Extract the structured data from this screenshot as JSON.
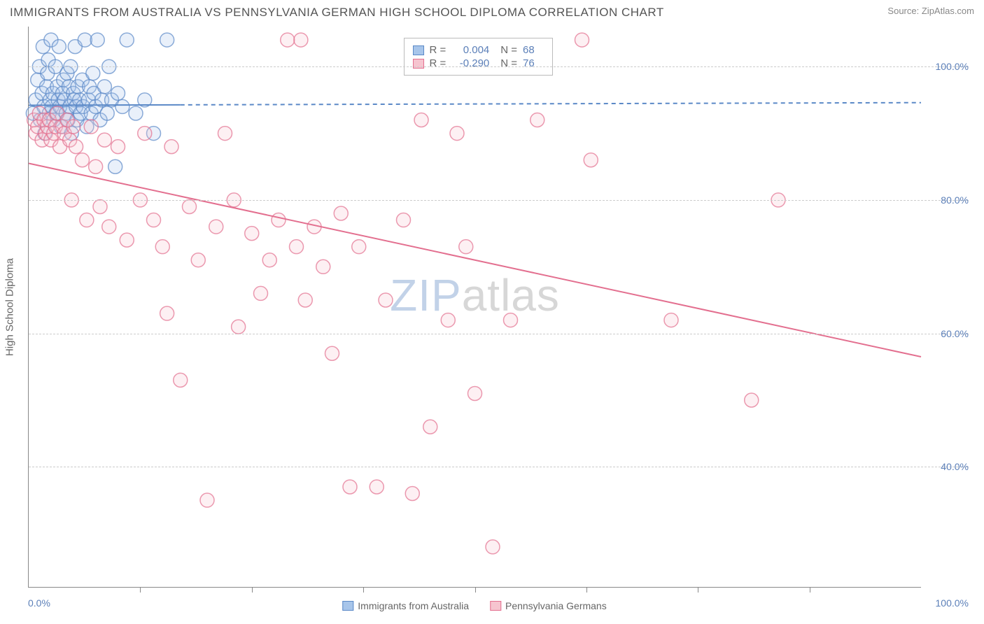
{
  "header": {
    "title": "IMMIGRANTS FROM AUSTRALIA VS PENNSYLVANIA GERMAN HIGH SCHOOL DIPLOMA CORRELATION CHART",
    "source_label": "Source:",
    "source_name": "ZipAtlas.com"
  },
  "chart": {
    "type": "scatter",
    "y_axis_title": "High School Diploma",
    "background_color": "#ffffff",
    "grid_color": "#cccccc",
    "axis_color": "#888888",
    "tick_label_color": "#5b7fb8",
    "xlim": [
      0,
      100
    ],
    "ylim": [
      22,
      106
    ],
    "x_tick_positions": [
      12.5,
      25,
      37.5,
      50,
      62.5,
      75,
      87.5
    ],
    "x_min_label": "0.0%",
    "x_max_label": "100.0%",
    "y_gridlines": [
      40,
      60,
      80,
      100
    ],
    "y_tick_labels": [
      "40.0%",
      "60.0%",
      "80.0%",
      "100.0%"
    ],
    "marker_radius": 10,
    "marker_stroke_width": 1.5,
    "marker_fill_opacity": 0.25,
    "line_width": 2,
    "watermark": {
      "part1": "ZIP",
      "part2": "atlas"
    }
  },
  "stats_box": {
    "left_pct": 42,
    "top_pct": 2,
    "rows": [
      {
        "swatch_fill": "#a7c5ea",
        "swatch_stroke": "#5b89c7",
        "r_label": "R =",
        "r_value": "0.004",
        "n_label": "N =",
        "n_value": "68"
      },
      {
        "swatch_fill": "#f6c4cf",
        "swatch_stroke": "#e36f8f",
        "r_label": "R =",
        "r_value": "-0.290",
        "n_label": "N =",
        "n_value": "76"
      }
    ]
  },
  "bottom_legend": {
    "items": [
      {
        "swatch_fill": "#a7c5ea",
        "swatch_stroke": "#5b89c7",
        "label": "Immigrants from Australia"
      },
      {
        "swatch_fill": "#f6c4cf",
        "swatch_stroke": "#e36f8f",
        "label": "Pennsylvania Germans"
      }
    ]
  },
  "series": [
    {
      "name": "Immigrants from Australia",
      "color_stroke": "#5b89c7",
      "color_fill": "#a7c5ea",
      "trend": {
        "x1": 0,
        "y1": 94.2,
        "x2": 100,
        "y2": 94.6,
        "solid_until_x": 17,
        "dash": "6,5"
      },
      "points": [
        [
          0.5,
          93
        ],
        [
          0.8,
          95
        ],
        [
          1.0,
          98
        ],
        [
          1.2,
          100
        ],
        [
          1.3,
          92
        ],
        [
          1.5,
          96
        ],
        [
          1.6,
          103
        ],
        [
          1.7,
          94
        ],
        [
          1.8,
          90
        ],
        [
          2.0,
          97
        ],
        [
          2.1,
          99
        ],
        [
          2.2,
          101
        ],
        [
          2.3,
          93
        ],
        [
          2.4,
          95
        ],
        [
          2.5,
          104
        ],
        [
          2.6,
          94
        ],
        [
          2.7,
          96
        ],
        [
          2.8,
          92
        ],
        [
          3.0,
          100
        ],
        [
          3.1,
          93
        ],
        [
          3.2,
          97
        ],
        [
          3.3,
          95
        ],
        [
          3.4,
          103
        ],
        [
          3.5,
          94
        ],
        [
          3.6,
          91
        ],
        [
          3.8,
          96
        ],
        [
          3.9,
          98
        ],
        [
          4.0,
          95
        ],
        [
          4.2,
          93
        ],
        [
          4.3,
          99
        ],
        [
          4.4,
          92
        ],
        [
          4.5,
          97
        ],
        [
          4.6,
          94
        ],
        [
          4.7,
          100
        ],
        [
          4.8,
          90
        ],
        [
          5.0,
          96
        ],
        [
          5.1,
          95
        ],
        [
          5.2,
          103
        ],
        [
          5.3,
          94
        ],
        [
          5.4,
          92
        ],
        [
          5.5,
          97
        ],
        [
          5.7,
          95
        ],
        [
          5.8,
          93
        ],
        [
          6.0,
          98
        ],
        [
          6.1,
          94
        ],
        [
          6.3,
          104
        ],
        [
          6.5,
          91
        ],
        [
          6.7,
          95
        ],
        [
          6.8,
          97
        ],
        [
          7.0,
          93
        ],
        [
          7.2,
          99
        ],
        [
          7.3,
          96
        ],
        [
          7.5,
          94
        ],
        [
          7.7,
          104
        ],
        [
          8.0,
          92
        ],
        [
          8.2,
          95
        ],
        [
          8.5,
          97
        ],
        [
          8.8,
          93
        ],
        [
          9.0,
          100
        ],
        [
          9.3,
          95
        ],
        [
          9.7,
          85
        ],
        [
          10.0,
          96
        ],
        [
          10.5,
          94
        ],
        [
          11.0,
          104
        ],
        [
          12.0,
          93
        ],
        [
          13.0,
          95
        ],
        [
          14.0,
          90
        ],
        [
          15.5,
          104
        ]
      ]
    },
    {
      "name": "Pennsylvania Germans",
      "color_stroke": "#e36f8f",
      "color_fill": "#f6c4cf",
      "trend": {
        "x1": 0,
        "y1": 85.5,
        "x2": 100,
        "y2": 56.5,
        "solid_until_x": 100,
        "dash": null
      },
      "points": [
        [
          0.6,
          92
        ],
        [
          0.8,
          90
        ],
        [
          1.0,
          91
        ],
        [
          1.2,
          93
        ],
        [
          1.5,
          89
        ],
        [
          1.7,
          92
        ],
        [
          1.9,
          90
        ],
        [
          2.1,
          91
        ],
        [
          2.3,
          92
        ],
        [
          2.5,
          89
        ],
        [
          2.8,
          90
        ],
        [
          3.0,
          91
        ],
        [
          3.2,
          93
        ],
        [
          3.5,
          88
        ],
        [
          3.8,
          91
        ],
        [
          4.0,
          90
        ],
        [
          4.3,
          92
        ],
        [
          4.6,
          89
        ],
        [
          4.8,
          80
        ],
        [
          5.0,
          91
        ],
        [
          5.3,
          88
        ],
        [
          6.0,
          86
        ],
        [
          6.5,
          77
        ],
        [
          7.0,
          91
        ],
        [
          7.5,
          85
        ],
        [
          8.0,
          79
        ],
        [
          8.5,
          89
        ],
        [
          9.0,
          76
        ],
        [
          10.0,
          88
        ],
        [
          11.0,
          74
        ],
        [
          12.5,
          80
        ],
        [
          13.0,
          90
        ],
        [
          14.0,
          77
        ],
        [
          15.0,
          73
        ],
        [
          15.5,
          63
        ],
        [
          16.0,
          88
        ],
        [
          17.0,
          53
        ],
        [
          18.0,
          79
        ],
        [
          19.0,
          71
        ],
        [
          20.0,
          35
        ],
        [
          21.0,
          76
        ],
        [
          22.0,
          90
        ],
        [
          23.0,
          80
        ],
        [
          23.5,
          61
        ],
        [
          25.0,
          75
        ],
        [
          26.0,
          66
        ],
        [
          27.0,
          71
        ],
        [
          28.0,
          77
        ],
        [
          29.0,
          104
        ],
        [
          30.0,
          73
        ],
        [
          30.5,
          104
        ],
        [
          31.0,
          65
        ],
        [
          32.0,
          76
        ],
        [
          33.0,
          70
        ],
        [
          34.0,
          57
        ],
        [
          35.0,
          78
        ],
        [
          36.0,
          37
        ],
        [
          37.0,
          73
        ],
        [
          39.0,
          37
        ],
        [
          40.0,
          65
        ],
        [
          42.0,
          77
        ],
        [
          43.0,
          36
        ],
        [
          44.0,
          92
        ],
        [
          45.0,
          46
        ],
        [
          47.0,
          62
        ],
        [
          48.0,
          90
        ],
        [
          49.0,
          73
        ],
        [
          50.0,
          51
        ],
        [
          52.0,
          28
        ],
        [
          54.0,
          62
        ],
        [
          57.0,
          92
        ],
        [
          62.0,
          104
        ],
        [
          63.0,
          86
        ],
        [
          72.0,
          62
        ],
        [
          81.0,
          50
        ],
        [
          84.0,
          80
        ]
      ]
    }
  ]
}
